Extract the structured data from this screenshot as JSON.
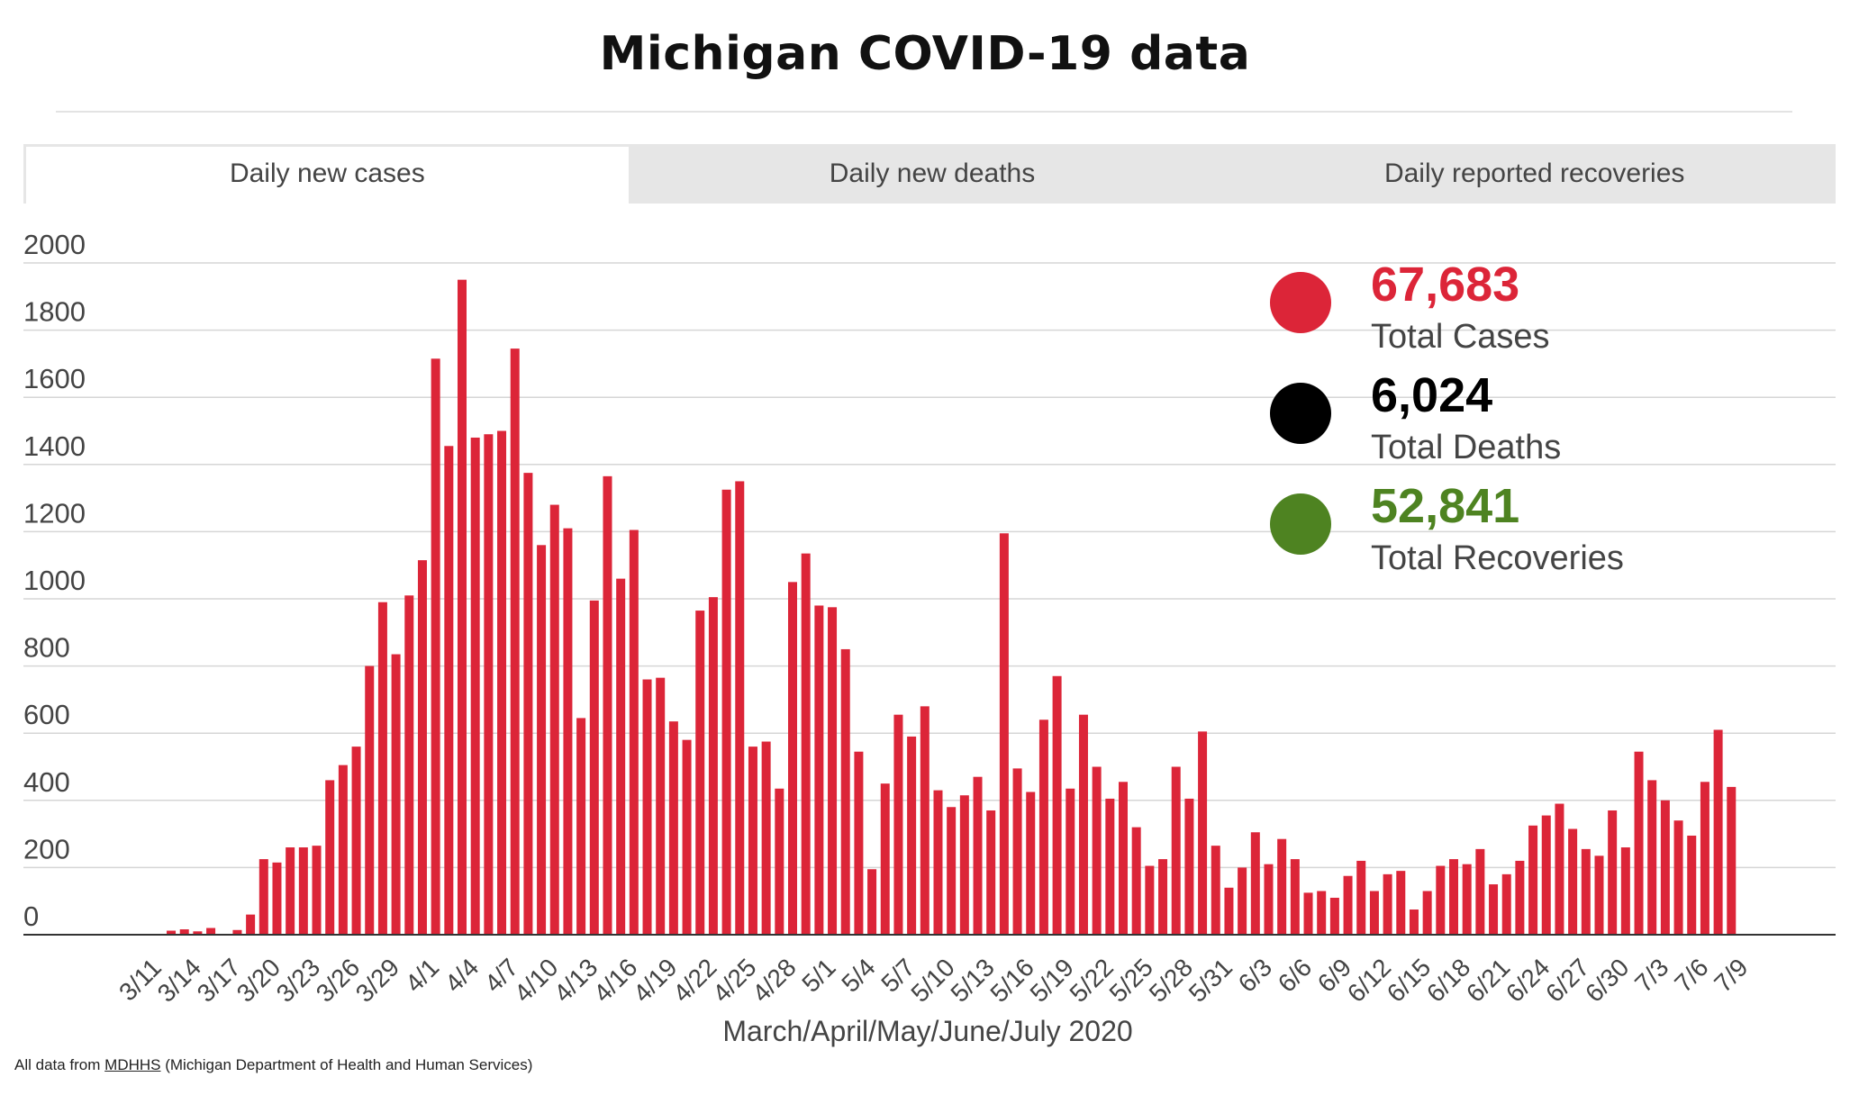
{
  "title": "Michigan COVID-19 data",
  "tabs": [
    {
      "label": "Daily new cases",
      "active": true
    },
    {
      "label": "Daily new deaths",
      "active": false
    },
    {
      "label": "Daily reported recoveries",
      "active": false
    }
  ],
  "stats": [
    {
      "value": "67,683",
      "label": "Total Cases",
      "color": "#dc2538"
    },
    {
      "value": "6,024",
      "label": "Total Deaths",
      "color": "#000000"
    },
    {
      "value": "52,841",
      "label": "Total Recoveries",
      "color": "#4e8321"
    }
  ],
  "footer": {
    "prefix": "All data from ",
    "link": "MDHHS",
    "suffix": " (Michigan Department of Health and Human Services)"
  },
  "chart_data": {
    "type": "bar",
    "xlabel": "March/April/May/June/July 2020",
    "ylabel": "",
    "ylim": [
      0,
      2000
    ],
    "yticks": [
      0,
      200,
      400,
      600,
      800,
      1000,
      1200,
      1400,
      1600,
      1800,
      2000
    ],
    "grid": true,
    "bar_color": "#dc2538",
    "categories": [
      "3/10",
      "3/11",
      "3/12",
      "3/13",
      "3/14",
      "3/15",
      "3/16",
      "3/17",
      "3/18",
      "3/19",
      "3/20",
      "3/21",
      "3/22",
      "3/23",
      "3/24",
      "3/25",
      "3/26",
      "3/27",
      "3/28",
      "3/29",
      "3/30",
      "3/31",
      "4/1",
      "4/2",
      "4/3",
      "4/4",
      "4/5",
      "4/6",
      "4/7",
      "4/8",
      "4/9",
      "4/10",
      "4/11",
      "4/12",
      "4/13",
      "4/14",
      "4/15",
      "4/16",
      "4/17",
      "4/18",
      "4/19",
      "4/20",
      "4/21",
      "4/22",
      "4/23",
      "4/24",
      "4/25",
      "4/26",
      "4/27",
      "4/28",
      "4/29",
      "4/30",
      "5/1",
      "5/2",
      "5/3",
      "5/4",
      "5/5",
      "5/6",
      "5/7",
      "5/8",
      "5/9",
      "5/10",
      "5/11",
      "5/12",
      "5/13",
      "5/14",
      "5/15",
      "5/16",
      "5/17",
      "5/18",
      "5/19",
      "5/20",
      "5/21",
      "5/22",
      "5/23",
      "5/24",
      "5/25",
      "5/26",
      "5/27",
      "5/28",
      "5/29",
      "5/30",
      "5/31",
      "6/1",
      "6/2",
      "6/3",
      "6/4",
      "6/5",
      "6/6",
      "6/7",
      "6/8",
      "6/9",
      "6/10",
      "6/11",
      "6/12",
      "6/13",
      "6/14",
      "6/15",
      "6/16",
      "6/17",
      "6/18",
      "6/19",
      "6/20",
      "6/21",
      "6/22",
      "6/23",
      "6/24",
      "6/25",
      "6/26",
      "6/27",
      "6/28",
      "6/29",
      "6/30",
      "7/1",
      "7/2",
      "7/3",
      "7/4",
      "7/5",
      "7/6",
      "7/7",
      "7/8",
      "7/9"
    ],
    "values": [
      0,
      0,
      0,
      12,
      16,
      10,
      20,
      0,
      14,
      60,
      225,
      215,
      260,
      260,
      265,
      460,
      505,
      560,
      800,
      990,
      835,
      1010,
      1115,
      1715,
      1455,
      1950,
      1480,
      1490,
      1500,
      1745,
      1375,
      1160,
      1280,
      1210,
      645,
      995,
      1365,
      1060,
      1205,
      760,
      765,
      635,
      580,
      965,
      1005,
      1325,
      1350,
      560,
      575,
      435,
      1050,
      1135,
      980,
      975,
      850,
      545,
      195,
      450,
      655,
      590,
      680,
      430,
      380,
      415,
      470,
      370,
      1195,
      495,
      425,
      640,
      770,
      435,
      655,
      500,
      405,
      455,
      320,
      205,
      225,
      500,
      405,
      605,
      265,
      140,
      200,
      305,
      210,
      285,
      225,
      125,
      130,
      110,
      175,
      220,
      130,
      180,
      190,
      75,
      130,
      205,
      225,
      210,
      255,
      150,
      180,
      220,
      325,
      355,
      390,
      315,
      255,
      235,
      370,
      260,
      545,
      460,
      400,
      340,
      295,
      455,
      610,
      440
    ],
    "tick_labels": [
      "3/11",
      "3/14",
      "3/17",
      "3/20",
      "3/23",
      "3/26",
      "3/29",
      "4/1",
      "4/4",
      "4/7",
      "4/10",
      "4/13",
      "4/16",
      "4/19",
      "4/22",
      "4/25",
      "4/28",
      "5/1",
      "5/4",
      "5/7",
      "5/10",
      "5/13",
      "5/16",
      "5/19",
      "5/22",
      "5/25",
      "5/28",
      "5/31",
      "6/3",
      "6/6",
      "6/9",
      "6/12",
      "6/15",
      "6/18",
      "6/21",
      "6/24",
      "6/27",
      "6/30",
      "7/3",
      "7/6",
      "7/9"
    ]
  }
}
